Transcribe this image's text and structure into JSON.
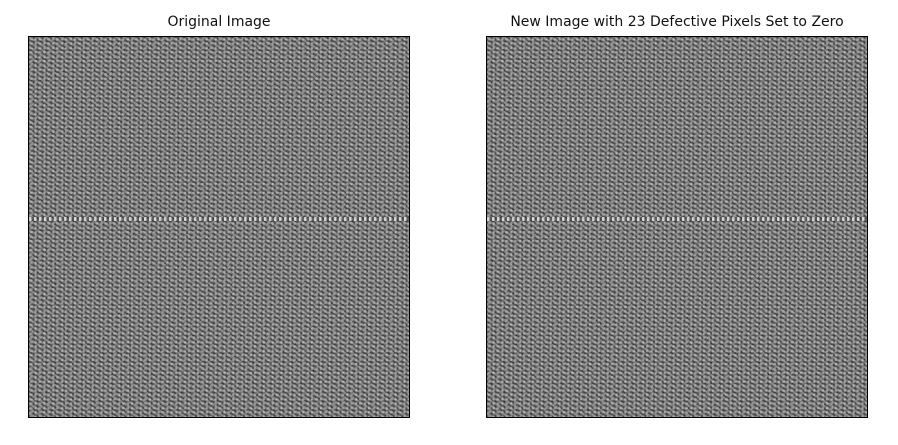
{
  "figure": {
    "panels": [
      {
        "title": "Original Image",
        "image": "grayscale woven fabric texture with diagonal weave and a faint horizontal seam"
      },
      {
        "title": "New Image with 23 Defective Pixels Set to Zero",
        "image": "grayscale woven fabric texture with diagonal weave and a faint horizontal seam"
      }
    ]
  }
}
